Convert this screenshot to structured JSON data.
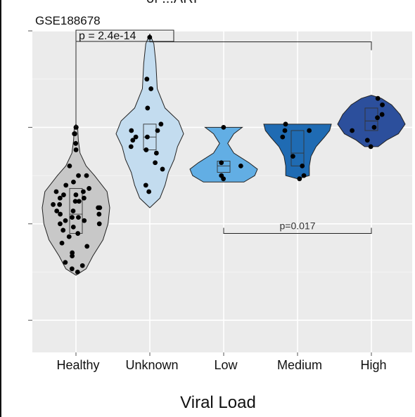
{
  "header": {
    "dataset_label": "GSE188678",
    "cut_title": "of ...ARI"
  },
  "chart_data": {
    "type": "violin",
    "xlabel": "Viral Load",
    "ylabel": "",
    "grid": true,
    "categories": [
      "Healthy",
      "Unknown",
      "Low",
      "Medium",
      "High"
    ],
    "colors": {
      "Healthy": "#c8c8c8",
      "Unknown": "#c3dcef",
      "Low": "#62aee4",
      "Medium": "#1f6bb3",
      "High": "#2c4f9c"
    },
    "ylim": [
      0,
      1
    ],
    "groups": [
      {
        "name": "Healthy",
        "points": [
          0.7,
          0.7,
          0.68,
          0.68,
          0.65,
          0.63,
          0.58,
          0.55,
          0.55,
          0.53,
          0.52,
          0.51,
          0.5,
          0.5,
          0.49,
          0.49,
          0.48,
          0.48,
          0.47,
          0.47,
          0.46,
          0.46,
          0.45,
          0.45,
          0.44,
          0.44,
          0.43,
          0.43,
          0.42,
          0.42,
          0.41,
          0.41,
          0.4,
          0.4,
          0.39,
          0.38,
          0.37,
          0.36,
          0.34,
          0.33,
          0.31,
          0.3,
          0.28,
          0.27,
          0.26,
          0.25
        ],
        "violin": [
          [
            0.24,
            0.0
          ],
          [
            0.26,
            0.3
          ],
          [
            0.3,
            0.5
          ],
          [
            0.35,
            0.8
          ],
          [
            0.4,
            0.95
          ],
          [
            0.45,
            1.0
          ],
          [
            0.5,
            0.92
          ],
          [
            0.55,
            0.55
          ],
          [
            0.58,
            0.3
          ],
          [
            0.62,
            0.12
          ],
          [
            0.66,
            0.07
          ],
          [
            0.7,
            0.05
          ],
          [
            0.71,
            0.0
          ]
        ],
        "box": {
          "q1": 0.37,
          "median": 0.43,
          "q3": 0.51
        }
      },
      {
        "name": "Unknown",
        "points": [
          0.98,
          0.85,
          0.82,
          0.76,
          0.71,
          0.69,
          0.69,
          0.67,
          0.67,
          0.66,
          0.64,
          0.63,
          0.62,
          0.59,
          0.57,
          0.52,
          0.5
        ],
        "violin": [
          [
            0.45,
            0.0
          ],
          [
            0.48,
            0.3
          ],
          [
            0.52,
            0.45
          ],
          [
            0.56,
            0.55
          ],
          [
            0.6,
            0.72
          ],
          [
            0.64,
            0.82
          ],
          [
            0.68,
            1.0
          ],
          [
            0.72,
            0.85
          ],
          [
            0.76,
            0.45
          ],
          [
            0.82,
            0.22
          ],
          [
            0.9,
            0.18
          ],
          [
            0.96,
            0.12
          ],
          [
            0.99,
            0.0
          ]
        ],
        "box": {
          "q1": 0.63,
          "median": 0.67,
          "q3": 0.71
        }
      },
      {
        "name": "Low",
        "points": [
          0.7,
          0.59,
          0.58,
          0.55,
          0.54
        ],
        "violin": [
          [
            0.53,
            0.0
          ],
          [
            0.53,
            0.6
          ],
          [
            0.55,
            0.92
          ],
          [
            0.57,
            1.0
          ],
          [
            0.59,
            0.75
          ],
          [
            0.62,
            0.3
          ],
          [
            0.65,
            0.12
          ],
          [
            0.68,
            0.3
          ],
          [
            0.7,
            0.55
          ],
          [
            0.7,
            0.0
          ]
        ],
        "box": {
          "q1": 0.56,
          "median": 0.58,
          "q3": 0.595
        }
      },
      {
        "name": "Medium",
        "points": [
          0.71,
          0.69,
          0.69,
          0.67,
          0.61,
          0.58,
          0.55,
          0.54
        ],
        "violin": [
          [
            0.54,
            0.0
          ],
          [
            0.55,
            0.35
          ],
          [
            0.58,
            0.35
          ],
          [
            0.61,
            0.4
          ],
          [
            0.64,
            0.55
          ],
          [
            0.67,
            0.8
          ],
          [
            0.69,
            0.95
          ],
          [
            0.71,
            1.0
          ],
          [
            0.71,
            0.0
          ]
        ],
        "box": {
          "q1": 0.58,
          "median": 0.62,
          "q3": 0.69
        }
      },
      {
        "name": "High",
        "points": [
          0.79,
          0.77,
          0.74,
          0.73,
          0.7,
          0.69,
          0.66,
          0.64
        ],
        "violin": [
          [
            0.64,
            0.0
          ],
          [
            0.64,
            0.2
          ],
          [
            0.66,
            0.45
          ],
          [
            0.68,
            0.8
          ],
          [
            0.71,
            1.0
          ],
          [
            0.74,
            0.85
          ],
          [
            0.77,
            0.6
          ],
          [
            0.79,
            0.3
          ],
          [
            0.8,
            0.0
          ]
        ],
        "box": {
          "q1": 0.69,
          "median": 0.72,
          "q3": 0.76
        }
      }
    ],
    "annotations": [
      {
        "label": "p = 2.4e-14",
        "from": "Healthy",
        "to": "High",
        "y": 0.98,
        "style": "boxed"
      },
      {
        "label": "p=0.017",
        "from": "Low",
        "to": "High",
        "y": 0.37,
        "style": "plain"
      }
    ]
  }
}
